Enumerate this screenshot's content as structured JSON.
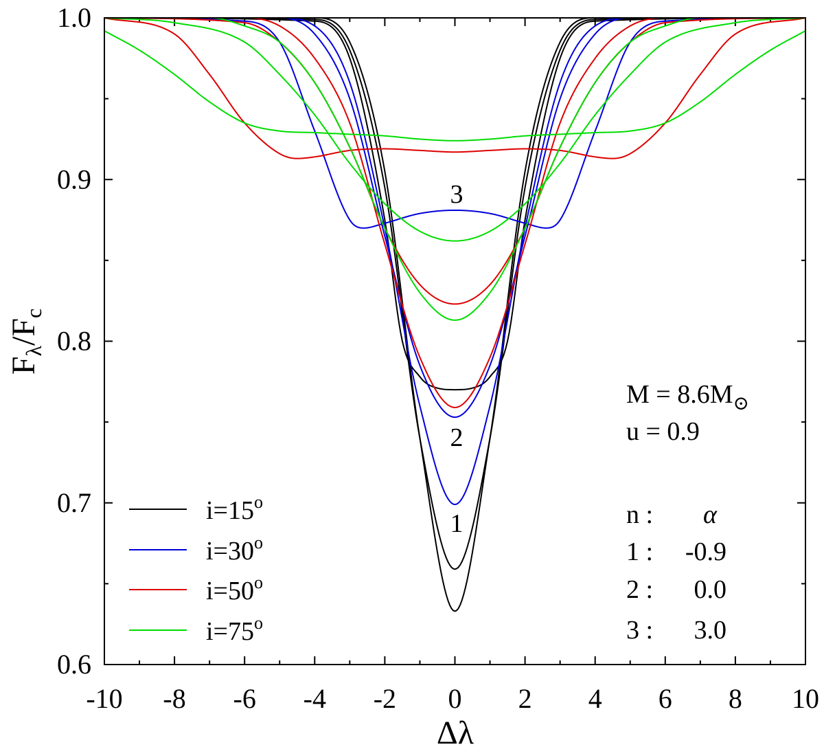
{
  "chart_data": {
    "type": "line",
    "title": "",
    "xlabel": "Δλ",
    "ylabel": "Fλ/Fc",
    "ylabel_parts": {
      "base": "F",
      "sub_num": "λ",
      "sep": "/",
      "base2": "F",
      "sub_den": "c"
    },
    "xlim": [
      -10,
      10
    ],
    "ylim": [
      0.6,
      1.0
    ],
    "xticks": [
      "-10",
      "-8",
      "-6",
      "-4",
      "-2",
      "0",
      "2",
      "4",
      "6",
      "8",
      "10"
    ],
    "yticks": [
      "0.6",
      "0.7",
      "0.8",
      "0.9",
      "1.0"
    ],
    "legend": [
      {
        "label": "i=15",
        "sup": "o",
        "color": "#000000"
      },
      {
        "label": "i=30",
        "sup": "o",
        "color": "#0000dd"
      },
      {
        "label": "i=50",
        "sup": "o",
        "color": "#dd0000"
      },
      {
        "label": "i=75",
        "sup": "o",
        "color": "#00dd00"
      }
    ],
    "legend_position": "bottom-left",
    "curve_labels": [
      {
        "text": "3",
        "x": 0.1,
        "y": 0.89
      },
      {
        "text": "2",
        "x": 0.1,
        "y": 0.737
      },
      {
        "text": "1",
        "x": 0.1,
        "y": 0.684
      }
    ],
    "annotations": {
      "mass": "M = 8.6M",
      "mass_symbol": "⊙",
      "u": "u = 0.9",
      "table_header_n": "n :",
      "table_header_alpha": "α",
      "rows": [
        {
          "n": "1 :",
          "alpha": "-0.9"
        },
        {
          "n": "2 :",
          "alpha": "0.0"
        },
        {
          "n": "3 :",
          "alpha": "3.0"
        }
      ]
    },
    "series": [
      {
        "name": "i=15, n=1",
        "inclination": 15,
        "n": 1,
        "color": "#000000",
        "x": [
          -10,
          -4,
          -3,
          -2,
          -1,
          0,
          1,
          2,
          3,
          4,
          10
        ],
        "y": [
          1.0,
          1.0,
          0.985,
          0.905,
          0.74,
          0.633,
          0.74,
          0.905,
          0.985,
          1.0,
          1.0
        ]
      },
      {
        "name": "i=15, n=2",
        "inclination": 15,
        "n": 2,
        "color": "#000000",
        "x": [
          -10,
          -4,
          -3,
          -2,
          -1,
          0,
          1,
          2,
          3,
          4,
          10
        ],
        "y": [
          1.0,
          0.999,
          0.98,
          0.895,
          0.74,
          0.659,
          0.74,
          0.895,
          0.98,
          0.999,
          1.0
        ]
      },
      {
        "name": "i=15, n=3",
        "inclination": 15,
        "n": 3,
        "color": "#000000",
        "x": [
          -10,
          -4,
          -3,
          -2,
          -1.5,
          -1,
          -0.5,
          0,
          0.5,
          1,
          1.5,
          2,
          3,
          4,
          10
        ],
        "y": [
          1.0,
          0.998,
          0.975,
          0.875,
          0.8,
          0.778,
          0.771,
          0.77,
          0.771,
          0.778,
          0.8,
          0.875,
          0.975,
          0.998,
          1.0
        ]
      },
      {
        "name": "i=30, n=1",
        "inclination": 30,
        "n": 1,
        "color": "#0000dd",
        "x": [
          -10,
          -5,
          -4,
          -3,
          -2,
          -1,
          0,
          1,
          2,
          3,
          4,
          5,
          10
        ],
        "y": [
          1.0,
          1.0,
          0.995,
          0.96,
          0.87,
          0.76,
          0.699,
          0.76,
          0.87,
          0.96,
          0.995,
          1.0,
          1.0
        ]
      },
      {
        "name": "i=30, n=2",
        "inclination": 30,
        "n": 2,
        "color": "#0000dd",
        "x": [
          -10,
          -5,
          -4,
          -3,
          -2,
          -1,
          0,
          1,
          2,
          3,
          4,
          5,
          10
        ],
        "y": [
          1.0,
          1.0,
          0.99,
          0.95,
          0.865,
          0.785,
          0.753,
          0.785,
          0.865,
          0.95,
          0.99,
          1.0,
          1.0
        ]
      },
      {
        "name": "i=30, n=3",
        "inclination": 30,
        "n": 3,
        "color": "#0000dd",
        "x": [
          -10,
          -6,
          -5,
          -4,
          -3,
          -2.6,
          -2,
          -1,
          0,
          1,
          2,
          2.6,
          3,
          4,
          5,
          6,
          10
        ],
        "y": [
          1.0,
          0.998,
          0.985,
          0.93,
          0.875,
          0.87,
          0.873,
          0.879,
          0.881,
          0.879,
          0.873,
          0.87,
          0.875,
          0.93,
          0.985,
          0.998,
          1.0
        ]
      },
      {
        "name": "i=50, n=1",
        "inclination": 50,
        "n": 1,
        "color": "#dd0000",
        "x": [
          -10,
          -6,
          -5,
          -4,
          -3,
          -2,
          -1,
          0,
          1,
          2,
          3,
          4,
          5,
          6,
          10
        ],
        "y": [
          1.0,
          1.0,
          0.995,
          0.975,
          0.935,
          0.86,
          0.79,
          0.759,
          0.79,
          0.86,
          0.935,
          0.975,
          0.995,
          1.0,
          1.0
        ]
      },
      {
        "name": "i=50, n=2",
        "inclination": 50,
        "n": 2,
        "color": "#dd0000",
        "x": [
          -10,
          -6,
          -5,
          -4,
          -3,
          -2,
          -1,
          0,
          1,
          2,
          3,
          4,
          5,
          6,
          10
        ],
        "y": [
          1.0,
          0.997,
          0.985,
          0.96,
          0.92,
          0.87,
          0.835,
          0.823,
          0.835,
          0.87,
          0.92,
          0.96,
          0.985,
          0.997,
          1.0
        ]
      },
      {
        "name": "i=50, n=3",
        "inclination": 50,
        "n": 3,
        "color": "#dd0000",
        "x": [
          -10,
          -8,
          -7,
          -6,
          -5,
          -4.5,
          -4,
          -3,
          -2,
          -1,
          0,
          1,
          2,
          3,
          4,
          4.5,
          5,
          6,
          7,
          8,
          10
        ],
        "y": [
          1.0,
          0.99,
          0.965,
          0.935,
          0.916,
          0.913,
          0.914,
          0.918,
          0.919,
          0.918,
          0.917,
          0.918,
          0.919,
          0.918,
          0.914,
          0.913,
          0.916,
          0.935,
          0.965,
          0.99,
          1.0
        ]
      },
      {
        "name": "i=75, n=1",
        "inclination": 75,
        "n": 1,
        "color": "#00dd00",
        "x": [
          -10,
          -7,
          -6,
          -5,
          -4,
          -3,
          -2,
          -1,
          0,
          1,
          2,
          3,
          4,
          5,
          6,
          7,
          10
        ],
        "y": [
          1.0,
          1.0,
          0.995,
          0.985,
          0.96,
          0.92,
          0.87,
          0.83,
          0.813,
          0.83,
          0.87,
          0.92,
          0.96,
          0.985,
          0.995,
          1.0,
          1.0
        ]
      },
      {
        "name": "i=75, n=2",
        "inclination": 75,
        "n": 2,
        "color": "#00dd00",
        "x": [
          -10,
          -8,
          -6,
          -5,
          -4,
          -3,
          -2,
          -1,
          0,
          1,
          2,
          3,
          4,
          5,
          6,
          8,
          10
        ],
        "y": [
          1.0,
          0.997,
          0.985,
          0.965,
          0.94,
          0.91,
          0.885,
          0.868,
          0.862,
          0.868,
          0.885,
          0.91,
          0.94,
          0.965,
          0.985,
          0.997,
          1.0
        ]
      },
      {
        "name": "i=75, n=3",
        "inclination": 75,
        "n": 3,
        "color": "#00dd00",
        "x": [
          -10,
          -9,
          -8,
          -7,
          -6,
          -5,
          -4,
          -3,
          -2,
          -1,
          0,
          1,
          2,
          3,
          4,
          5,
          6,
          7,
          8,
          9,
          10
        ],
        "y": [
          0.992,
          0.98,
          0.965,
          0.948,
          0.935,
          0.93,
          0.929,
          0.928,
          0.927,
          0.925,
          0.924,
          0.925,
          0.927,
          0.928,
          0.929,
          0.93,
          0.935,
          0.948,
          0.965,
          0.98,
          0.992
        ]
      }
    ]
  }
}
